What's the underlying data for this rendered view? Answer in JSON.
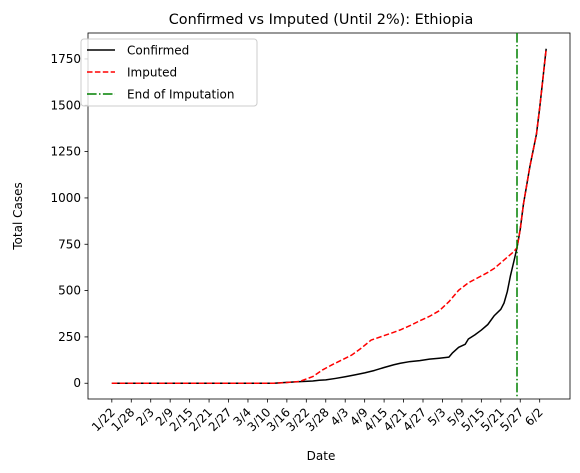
{
  "chart_data": {
    "type": "line",
    "title": "Confirmed vs Imputed (Until 2%): Ethiopia",
    "xlabel": "Date",
    "ylabel": "Total Cases",
    "x_tick_labels": [
      "1/22",
      "1/28",
      "2/3",
      "2/9",
      "2/15",
      "2/21",
      "2/27",
      "3/4",
      "3/10",
      "3/16",
      "3/22",
      "3/28",
      "4/3",
      "4/9",
      "4/15",
      "4/21",
      "4/27",
      "5/3",
      "5/9",
      "5/15",
      "5/21",
      "5/27",
      "6/2"
    ],
    "y_ticks": [
      0,
      250,
      500,
      750,
      1000,
      1250,
      1500,
      1750
    ],
    "ylim": [
      -85,
      1890
    ],
    "x_day_range": [
      "1/22",
      "6/4"
    ],
    "end_of_imputation": "5/26",
    "legend_position": "upper-left",
    "grid": false,
    "series": [
      {
        "name": "Confirmed",
        "color": "#000000",
        "style": "solid",
        "points": [
          [
            "1/22",
            0
          ],
          [
            "3/12",
            0
          ],
          [
            "3/16",
            5
          ],
          [
            "3/20",
            9
          ],
          [
            "3/24",
            12
          ],
          [
            "3/26",
            16
          ],
          [
            "3/28",
            18
          ],
          [
            "3/31",
            26
          ],
          [
            "4/3",
            35
          ],
          [
            "4/6",
            45
          ],
          [
            "4/9",
            56
          ],
          [
            "4/12",
            69
          ],
          [
            "4/15",
            85
          ],
          [
            "4/18",
            100
          ],
          [
            "4/20",
            108
          ],
          [
            "4/23",
            117
          ],
          [
            "4/26",
            122
          ],
          [
            "4/29",
            130
          ],
          [
            "5/2",
            135
          ],
          [
            "5/5",
            141
          ],
          [
            "5/6",
            162
          ],
          [
            "5/8",
            194
          ],
          [
            "5/10",
            210
          ],
          [
            "5/11",
            239
          ],
          [
            "5/13",
            261
          ],
          [
            "5/15",
            287
          ],
          [
            "5/17",
            317
          ],
          [
            "5/19",
            365
          ],
          [
            "5/21",
            399
          ],
          [
            "5/22",
            433
          ],
          [
            "5/23",
            494
          ],
          [
            "5/24",
            582
          ],
          [
            "5/25",
            655
          ],
          [
            "5/26",
            731
          ],
          [
            "5/27",
            831
          ],
          [
            "5/28",
            968
          ],
          [
            "5/30",
            1172
          ],
          [
            "6/1",
            1344
          ],
          [
            "6/2",
            1486
          ],
          [
            "6/4",
            1805
          ]
        ]
      },
      {
        "name": "Imputed",
        "color": "#ff0000",
        "style": "dashed",
        "points": [
          [
            "1/22",
            0
          ],
          [
            "3/12",
            0
          ],
          [
            "3/16",
            4
          ],
          [
            "3/20",
            10
          ],
          [
            "3/24",
            36
          ],
          [
            "3/27",
            72
          ],
          [
            "3/30",
            100
          ],
          [
            "4/2",
            126
          ],
          [
            "4/5",
            152
          ],
          [
            "4/8",
            190
          ],
          [
            "4/11",
            233
          ],
          [
            "4/14",
            251
          ],
          [
            "4/17",
            269
          ],
          [
            "4/20",
            288
          ],
          [
            "4/23",
            311
          ],
          [
            "4/26",
            337
          ],
          [
            "4/29",
            361
          ],
          [
            "5/2",
            391
          ],
          [
            "5/5",
            440
          ],
          [
            "5/8",
            502
          ],
          [
            "5/11",
            542
          ],
          [
            "5/14",
            570
          ],
          [
            "5/17",
            598
          ],
          [
            "5/19",
            620
          ],
          [
            "5/21",
            650
          ],
          [
            "5/23",
            680
          ],
          [
            "5/25",
            710
          ],
          [
            "5/26",
            731
          ],
          [
            "5/27",
            831
          ],
          [
            "5/28",
            968
          ],
          [
            "5/30",
            1172
          ],
          [
            "6/1",
            1344
          ],
          [
            "6/2",
            1486
          ],
          [
            "6/4",
            1805
          ]
        ]
      },
      {
        "name": "End of Imputation",
        "color": "#008000",
        "style": "dashdot"
      }
    ]
  }
}
